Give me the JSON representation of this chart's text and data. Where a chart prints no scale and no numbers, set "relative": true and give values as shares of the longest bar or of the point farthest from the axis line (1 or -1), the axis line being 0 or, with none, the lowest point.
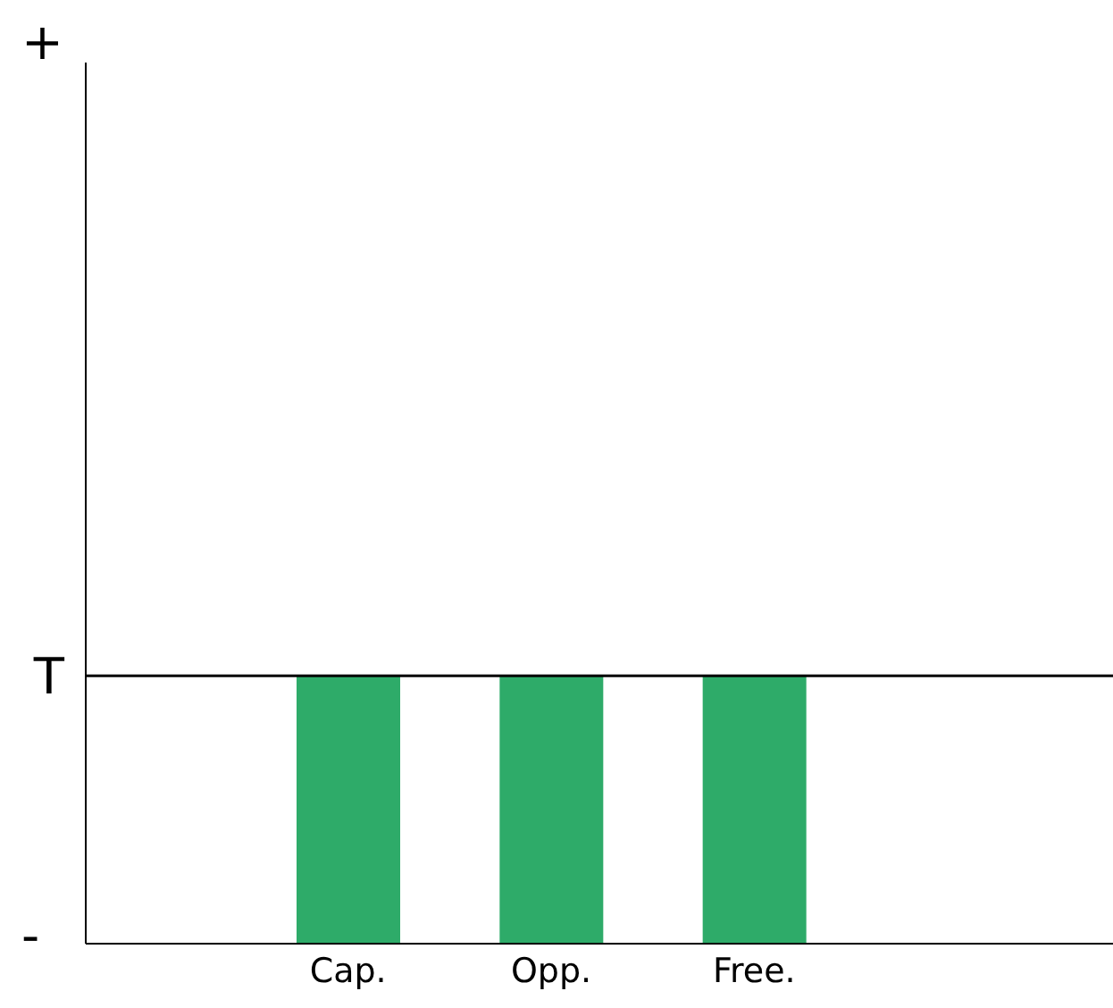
{
  "chart_data": {
    "type": "bar",
    "categories": [
      "Cap.",
      "Opp.",
      "Free."
    ],
    "values": [
      1,
      1,
      1
    ],
    "color": "#2eab69",
    "relative": true,
    "ref_lines": [
      {
        "axis": "y",
        "value": 1,
        "label": "T",
        "color": "#000000"
      }
    ],
    "annotations": [
      "+",
      "-"
    ],
    "grid": false,
    "legend": false
  }
}
